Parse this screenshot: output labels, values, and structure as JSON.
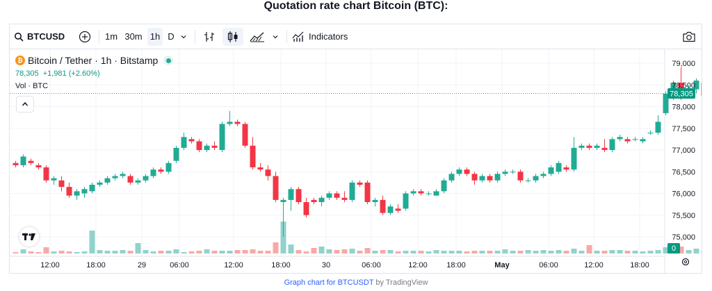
{
  "page_title": "Quotation rate chart Bitcoin (BTC):",
  "toolbar": {
    "symbol": "BTCUSD",
    "intervals": [
      "1m",
      "30m",
      "1h",
      "D"
    ],
    "active_interval": "1h",
    "indicators_label": "Indicators"
  },
  "legend": {
    "name": "Bitcoin / Tether · 1h · Bitstamp",
    "price": "78,305",
    "change": "+1,981 (+2.60%)",
    "volume": "Vol · BTC"
  },
  "last_price_label": "78,305",
  "volume_label": "0",
  "footer": {
    "link": "Graph chart for BTCUSDT",
    "suffix": " by TradingView"
  },
  "colors": {
    "up": "#22ab94",
    "down": "#f23645",
    "up_volume": "#92d2cc",
    "down_volume": "#f7a9a7"
  },
  "chart_data": {
    "type": "candlestick",
    "y_ticks": [
      "79,000",
      "78,500",
      "78,000",
      "77,500",
      "77,000",
      "76,500",
      "76,000",
      "75,500",
      "75,000"
    ],
    "x_ticks": [
      "12:00",
      "18:00",
      "29",
      "06:00",
      "12:00",
      "18:00",
      "30",
      "06:00",
      "12:00",
      "18:00",
      "May",
      "06:00",
      "12:00",
      "18:00"
    ],
    "ylim": [
      74900,
      79200
    ],
    "candles": [
      [
        76700,
        76750,
        76600,
        76650
      ],
      [
        76650,
        76900,
        76600,
        76850
      ],
      [
        76750,
        76800,
        76650,
        76700
      ],
      [
        76650,
        76700,
        76550,
        76600
      ],
      [
        76600,
        76650,
        76250,
        76300
      ],
      [
        76300,
        76400,
        76200,
        76350
      ],
      [
        76300,
        76400,
        76050,
        76150
      ],
      [
        76150,
        76250,
        75900,
        75950
      ],
      [
        75950,
        76100,
        75850,
        76050
      ],
      [
        76000,
        76150,
        75900,
        76100
      ],
      [
        76050,
        76250,
        76000,
        76200
      ],
      [
        76200,
        76300,
        76150,
        76250
      ],
      [
        76250,
        76400,
        76200,
        76350
      ],
      [
        76350,
        76450,
        76300,
        76400
      ],
      [
        76400,
        76500,
        76350,
        76450
      ],
      [
        76400,
        76450,
        76200,
        76250
      ],
      [
        76250,
        76350,
        76200,
        76300
      ],
      [
        76300,
        76450,
        76250,
        76400
      ],
      [
        76400,
        76600,
        76350,
        76550
      ],
      [
        76550,
        76600,
        76450,
        76500
      ],
      [
        76500,
        76750,
        76450,
        76700
      ],
      [
        76750,
        77100,
        76700,
        77050
      ],
      [
        77050,
        77400,
        77000,
        77300
      ],
      [
        77250,
        77300,
        77150,
        77200
      ],
      [
        77200,
        77250,
        76950,
        77000
      ],
      [
        77000,
        77150,
        76950,
        77100
      ],
      [
        77100,
        77200,
        77000,
        77050
      ],
      [
        77000,
        77650,
        76950,
        77600
      ],
      [
        77600,
        77900,
        77550,
        77650
      ],
      [
        77650,
        77700,
        77550,
        77600
      ],
      [
        77600,
        77650,
        77050,
        77100
      ],
      [
        77100,
        77300,
        76550,
        76600
      ],
      [
        76600,
        76700,
        76500,
        76550
      ],
      [
        76550,
        76650,
        76300,
        76400
      ],
      [
        76400,
        76500,
        75800,
        75850
      ],
      [
        75800,
        75900,
        75000,
        75850
      ],
      [
        75850,
        76150,
        75600,
        76100
      ],
      [
        76100,
        76150,
        75750,
        75800
      ],
      [
        75800,
        75900,
        75450,
        75500
      ],
      [
        75850,
        75900,
        75750,
        75800
      ],
      [
        75800,
        75950,
        75700,
        75900
      ],
      [
        75900,
        76050,
        75850,
        76000
      ],
      [
        76000,
        76050,
        75850,
        75900
      ],
      [
        75900,
        76050,
        75800,
        75850
      ],
      [
        75850,
        76300,
        75800,
        76250
      ],
      [
        76250,
        76300,
        76150,
        76200
      ],
      [
        76250,
        76300,
        75750,
        75800
      ],
      [
        75800,
        75900,
        75700,
        75850
      ],
      [
        75850,
        75950,
        75500,
        75550
      ],
      [
        75550,
        75750,
        75500,
        75700
      ],
      [
        75650,
        75750,
        75550,
        75600
      ],
      [
        75650,
        76050,
        75600,
        76000
      ],
      [
        76000,
        76100,
        75950,
        76050
      ],
      [
        76050,
        76100,
        75950,
        76000
      ],
      [
        76000,
        76050,
        75950,
        76000
      ],
      [
        75950,
        76100,
        75950,
        76050
      ],
      [
        76050,
        76350,
        76000,
        76300
      ],
      [
        76300,
        76500,
        76250,
        76450
      ],
      [
        76450,
        76600,
        76400,
        76550
      ],
      [
        76550,
        76600,
        76400,
        76450
      ],
      [
        76450,
        76500,
        76200,
        76300
      ],
      [
        76300,
        76450,
        76250,
        76400
      ],
      [
        76400,
        76450,
        76250,
        76300
      ],
      [
        76300,
        76500,
        76250,
        76450
      ],
      [
        76450,
        76550,
        76400,
        76500
      ],
      [
        76500,
        76550,
        76450,
        76500
      ],
      [
        76500,
        76550,
        76250,
        76300
      ],
      [
        76300,
        76350,
        76250,
        76300
      ],
      [
        76300,
        76450,
        76250,
        76400
      ],
      [
        76400,
        76500,
        76350,
        76450
      ],
      [
        76450,
        76650,
        76400,
        76600
      ],
      [
        76500,
        76750,
        76450,
        76700
      ],
      [
        76600,
        76650,
        76500,
        76550
      ],
      [
        76550,
        77300,
        76500,
        77050
      ],
      [
        77050,
        77150,
        77000,
        77100
      ],
      [
        77100,
        77150,
        77000,
        77050
      ],
      [
        77050,
        77150,
        77000,
        77100
      ],
      [
        77050,
        77250,
        76950,
        77000
      ],
      [
        77000,
        77300,
        76950,
        77250
      ],
      [
        77250,
        77350,
        77200,
        77300
      ],
      [
        77250,
        77300,
        77150,
        77200
      ],
      [
        77250,
        77300,
        77200,
        77250
      ],
      [
        77200,
        77300,
        77150,
        77250
      ],
      [
        77400,
        77450,
        77350,
        77400
      ],
      [
        77400,
        77800,
        77350,
        77650
      ],
      [
        77850,
        78350,
        77800,
        78300
      ],
      [
        78200,
        78600,
        78150,
        78550
      ],
      [
        78550,
        78900,
        78150,
        78250
      ],
      [
        78250,
        78500,
        78200,
        78400
      ],
      [
        78400,
        78650,
        78300,
        78600
      ],
      [
        78550,
        78650,
        78200,
        78250
      ],
      [
        78250,
        78600,
        78200,
        78450
      ],
      [
        78400,
        78700,
        78350,
        78500
      ],
      [
        78100,
        78150,
        77800,
        77850
      ],
      [
        78050,
        78250,
        78000,
        78200
      ]
    ],
    "volume": []
  }
}
